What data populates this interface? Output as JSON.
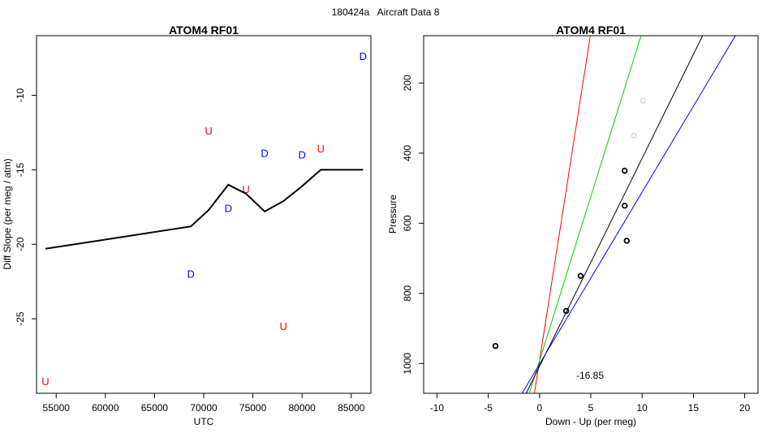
{
  "figure_title": "180424a   Aircraft Data 8",
  "chart_data": [
    {
      "type": "scatter",
      "title": "ATOM4 RF01",
      "xlabel": "UTC",
      "ylabel": "Diff Slope (per meg / atm)",
      "xlim": [
        53000,
        87000
      ],
      "ylim": [
        -30,
        -6
      ],
      "y_reversed": false,
      "xticks": [
        55000,
        60000,
        65000,
        70000,
        75000,
        80000,
        85000
      ],
      "xtick_labels": [
        "55000",
        "60000",
        "65000",
        "70000",
        "75000",
        "80000",
        "85000"
      ],
      "yticks": [
        -10,
        -15,
        -20,
        -25
      ],
      "ytick_labels": [
        "-10",
        "-15",
        "-20",
        "-25"
      ],
      "series": [
        {
          "name": "D",
          "kind": "text",
          "color": "#0000ff",
          "points": [
            {
              "x": 86200,
              "y": -7.4,
              "label": "D"
            },
            {
              "x": 76200,
              "y": -13.9,
              "label": "D"
            },
            {
              "x": 80000,
              "y": -14.0,
              "label": "D"
            },
            {
              "x": 72500,
              "y": -17.6,
              "label": "D"
            },
            {
              "x": 68700,
              "y": -22.0,
              "label": "D"
            }
          ]
        },
        {
          "name": "U",
          "kind": "text",
          "color": "#ff0000",
          "points": [
            {
              "x": 70500,
              "y": -12.4,
              "label": "U"
            },
            {
              "x": 81900,
              "y": -13.6,
              "label": "U"
            },
            {
              "x": 74300,
              "y": -16.3,
              "label": "U"
            },
            {
              "x": 78100,
              "y": -25.5,
              "label": "U"
            },
            {
              "x": 53900,
              "y": -29.2,
              "label": "U"
            }
          ]
        },
        {
          "name": "smoothed",
          "kind": "line",
          "color": "#000000",
          "points": [
            {
              "x": 53900,
              "y": -20.3
            },
            {
              "x": 68700,
              "y": -18.8
            },
            {
              "x": 70500,
              "y": -17.7
            },
            {
              "x": 72500,
              "y": -16.0
            },
            {
              "x": 74300,
              "y": -16.6
            },
            {
              "x": 76200,
              "y": -17.8
            },
            {
              "x": 78100,
              "y": -17.1
            },
            {
              "x": 80000,
              "y": -16.1
            },
            {
              "x": 81900,
              "y": -15.0
            },
            {
              "x": 86200,
              "y": -15.0
            }
          ]
        }
      ]
    },
    {
      "type": "scatter",
      "title": "ATOM4 RF01",
      "xlabel": "Down - Up (per meg)",
      "ylabel": "Pressure",
      "xlim": [
        -11.3,
        21.3
      ],
      "ylim": [
        1085,
        65
      ],
      "y_reversed": true,
      "xticks": [
        -10,
        -5,
        0,
        5,
        10,
        15,
        20
      ],
      "xtick_labels": [
        "-10",
        "-5",
        "0",
        "5",
        "10",
        "15",
        "20"
      ],
      "yticks": [
        200,
        400,
        600,
        800,
        1000
      ],
      "ytick_labels": [
        "200",
        "400",
        "600",
        "800",
        "1000"
      ],
      "annotation": {
        "text": "-16.85",
        "x": 5.6,
        "y": 1040
      },
      "series": [
        {
          "name": "points",
          "kind": "circle",
          "color": "#000000",
          "points": [
            {
              "x": -4.3,
              "y": 950
            },
            {
              "x": 2.6,
              "y": 850
            },
            {
              "x": 4.0,
              "y": 750
            },
            {
              "x": 8.5,
              "y": 650
            },
            {
              "x": 8.3,
              "y": 550
            },
            {
              "x": 8.3,
              "y": 450
            }
          ]
        },
        {
          "name": "excluded",
          "kind": "circle",
          "color": "#c8c8c8",
          "points": [
            {
              "x": 9.2,
              "y": 350
            },
            {
              "x": 10.1,
              "y": 250
            }
          ]
        },
        {
          "name": "fit-red",
          "kind": "line",
          "color": "#ff0000",
          "points": [
            {
              "x": -0.5,
              "y": 1085
            },
            {
              "x": 4.95,
              "y": 65
            }
          ]
        },
        {
          "name": "fit-green",
          "kind": "line",
          "color": "#00cc00",
          "points": [
            {
              "x": -1.0,
              "y": 1085
            },
            {
              "x": 9.9,
              "y": 65
            }
          ]
        },
        {
          "name": "fit-black",
          "kind": "line",
          "color": "#000000",
          "points": [
            {
              "x": -1.3,
              "y": 1085
            },
            {
              "x": 15.9,
              "y": 65
            }
          ]
        },
        {
          "name": "fit-blue",
          "kind": "line",
          "color": "#0000ff",
          "points": [
            {
              "x": -1.7,
              "y": 1085
            },
            {
              "x": 19.1,
              "y": 65
            }
          ]
        }
      ]
    }
  ]
}
